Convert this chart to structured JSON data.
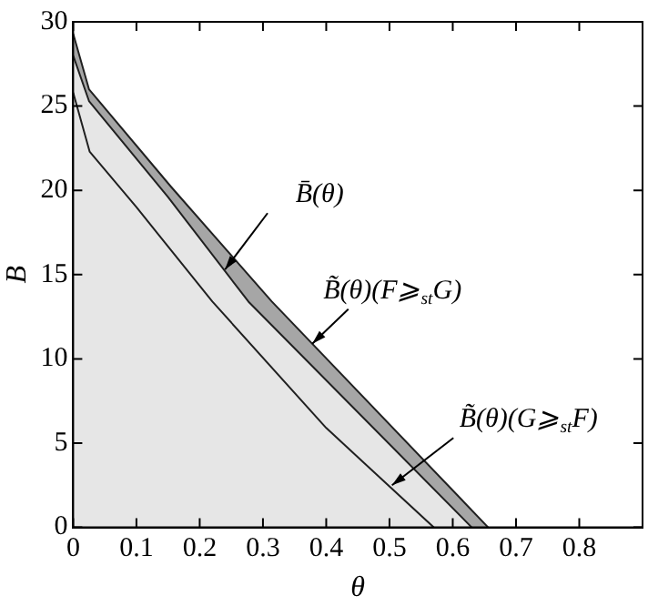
{
  "chart_data": {
    "type": "area",
    "xlabel": "θ",
    "ylabel": "B",
    "xlim": [
      0,
      0.9
    ],
    "ylim": [
      0,
      30
    ],
    "xticks": [
      0,
      0.1,
      0.2,
      0.3,
      0.4,
      0.5,
      0.6,
      0.7,
      0.8
    ],
    "yticks": [
      0,
      5,
      10,
      15,
      20,
      25,
      30
    ],
    "grid": false,
    "legend": false,
    "marker": "none",
    "line_style": "solid",
    "series": [
      {
        "type": "line",
        "color": "#202020",
        "x": [
          0,
          0.026,
          0.1,
          0.22,
          0.4,
          0.57
        ],
        "values": [
          25.8,
          22.3,
          19.0,
          13.4,
          5.9,
          0
        ]
      },
      {
        "color": "#e6e6e6",
        "x": [
          0,
          0.025,
          0.15,
          0.277,
          0.63
        ],
        "values": [
          28,
          25.3,
          19.6,
          13.4,
          0
        ]
      },
      {
        "color": "#a6a6a6",
        "x": [
          0,
          0.025,
          0.155,
          0.314,
          0.656
        ],
        "values": [
          29.3,
          26,
          20.2,
          13.4,
          0
        ]
      }
    ],
    "annotations": [
      {
        "text": "B̄(θ)",
        "x": 0.24,
        "y": 15.3
      },
      {
        "text": "B̃(θ)(F⩾$_{st}$G)",
        "x": 0.378,
        "y": 10.9
      },
      {
        "text": "B̃(θ)(G⩾$_{st}$F)",
        "x": 0.504,
        "y": 2.5
      }
    ]
  }
}
